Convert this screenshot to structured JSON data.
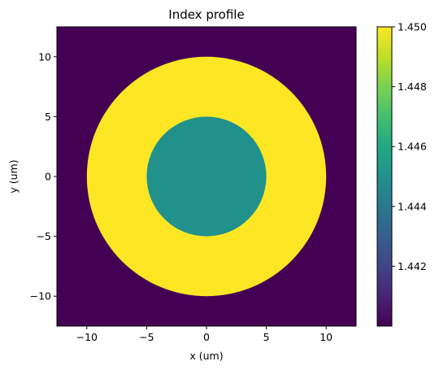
{
  "chart_data": {
    "type": "heatmap",
    "title": "Index profile",
    "xlabel": "x (um)",
    "ylabel": "y (um)",
    "xlim": [
      -12.5,
      12.5
    ],
    "ylim": [
      -12.5,
      12.5
    ],
    "xticks": [
      -10,
      -5,
      0,
      5,
      10
    ],
    "xtick_labels": [
      "−10",
      "−5",
      "0",
      "5",
      "10"
    ],
    "yticks": [
      -10,
      -5,
      0,
      5,
      10
    ],
    "ytick_labels": [
      "−10",
      "−5",
      "0",
      "5",
      "10"
    ],
    "grid": false,
    "colormap": "viridis",
    "regions": [
      {
        "name": "background",
        "n": 1.44
      },
      {
        "name": "ring",
        "outer_radius_um": 10,
        "inner_radius_um": 5,
        "n": 1.45
      },
      {
        "name": "core",
        "radius_um": 5,
        "n": 1.445
      }
    ],
    "colorbar": {
      "range": [
        1.44,
        1.45
      ],
      "ticks": [
        1.442,
        1.444,
        1.446,
        1.448,
        1.45
      ],
      "tick_labels": [
        "1.442",
        "1.444",
        "1.446",
        "1.448",
        "1.450"
      ]
    },
    "colors": {
      "background": "#440154",
      "ring": "#fde725",
      "core": "#21918c"
    }
  }
}
